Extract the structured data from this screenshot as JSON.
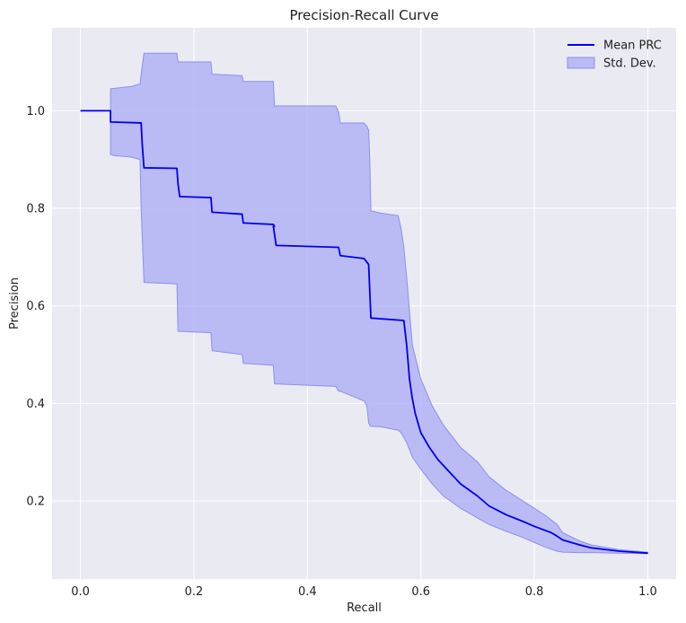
{
  "chart_data": {
    "type": "line",
    "title": "Precision-Recall Curve",
    "xlabel": "Recall",
    "ylabel": "Precision",
    "xlim": [
      -0.05,
      1.05
    ],
    "ylim": [
      0.04,
      1.17
    ],
    "xticks": [
      0.0,
      0.2,
      0.4,
      0.6,
      0.8,
      1.0
    ],
    "xtick_labels": [
      "0.0",
      "0.2",
      "0.4",
      "0.6",
      "0.8",
      "1.0"
    ],
    "yticks": [
      0.2,
      0.4,
      0.6,
      0.8,
      1.0
    ],
    "ytick_labels": [
      "0.2",
      "0.4",
      "0.6",
      "0.8",
      "1.0"
    ],
    "grid": true,
    "legend_position": "top-right",
    "colors": {
      "background": "#eaeaf2",
      "grid": "#ffffff",
      "mean_line": "#0000ee",
      "band_fill": "#aaaaf5",
      "band_edge": "#8f8ff0"
    },
    "series": [
      {
        "name": "Mean PRC",
        "style": "line",
        "x": [
          0.0,
          0.053,
          0.053,
          0.107,
          0.109,
          0.112,
          0.17,
          0.172,
          0.175,
          0.23,
          0.232,
          0.285,
          0.287,
          0.34,
          0.342,
          0.34,
          0.345,
          0.455,
          0.458,
          0.5,
          0.508,
          0.512,
          0.57,
          0.575,
          0.58,
          0.585,
          0.59,
          0.6,
          0.615,
          0.63,
          0.65,
          0.67,
          0.7,
          0.72,
          0.75,
          0.78,
          0.8,
          0.83,
          0.84,
          0.85,
          0.88,
          0.9,
          0.95,
          1.0
        ],
        "y": [
          1.0,
          1.0,
          0.977,
          0.975,
          0.93,
          0.883,
          0.882,
          0.85,
          0.824,
          0.822,
          0.792,
          0.788,
          0.77,
          0.767,
          0.763,
          0.763,
          0.724,
          0.72,
          0.703,
          0.697,
          0.685,
          0.575,
          0.57,
          0.52,
          0.45,
          0.41,
          0.38,
          0.34,
          0.31,
          0.285,
          0.26,
          0.235,
          0.21,
          0.19,
          0.172,
          0.158,
          0.148,
          0.135,
          0.128,
          0.12,
          0.11,
          0.104,
          0.097,
          0.093
        ]
      },
      {
        "name": "Std. Dev.",
        "style": "band",
        "x": [
          0.053,
          0.06,
          0.09,
          0.105,
          0.107,
          0.112,
          0.17,
          0.172,
          0.23,
          0.232,
          0.285,
          0.287,
          0.34,
          0.342,
          0.45,
          0.455,
          0.458,
          0.5,
          0.505,
          0.508,
          0.51,
          0.512,
          0.53,
          0.56,
          0.565,
          0.57,
          0.575,
          0.58,
          0.585,
          0.6,
          0.62,
          0.64,
          0.67,
          0.7,
          0.72,
          0.75,
          0.78,
          0.8,
          0.82,
          0.84,
          0.85,
          0.88,
          0.9,
          0.95,
          1.0
        ],
        "upper": [
          1.045,
          1.046,
          1.05,
          1.055,
          1.075,
          1.118,
          1.118,
          1.1,
          1.1,
          1.075,
          1.072,
          1.06,
          1.06,
          1.01,
          1.01,
          0.998,
          0.975,
          0.975,
          0.968,
          0.96,
          0.9,
          0.795,
          0.79,
          0.785,
          0.76,
          0.72,
          0.66,
          0.59,
          0.52,
          0.45,
          0.395,
          0.355,
          0.31,
          0.28,
          0.25,
          0.222,
          0.2,
          0.185,
          0.17,
          0.152,
          0.135,
          0.118,
          0.11,
          0.1,
          0.095
        ],
        "lower": [
          0.91,
          0.908,
          0.905,
          0.9,
          0.8,
          0.648,
          0.645,
          0.548,
          0.545,
          0.508,
          0.5,
          0.482,
          0.478,
          0.44,
          0.435,
          0.425,
          0.425,
          0.405,
          0.395,
          0.36,
          0.355,
          0.353,
          0.352,
          0.345,
          0.34,
          0.33,
          0.32,
          0.305,
          0.29,
          0.265,
          0.235,
          0.21,
          0.185,
          0.165,
          0.152,
          0.138,
          0.125,
          0.115,
          0.105,
          0.097,
          0.095,
          0.094,
          0.094,
          0.093,
          0.092
        ]
      }
    ]
  }
}
